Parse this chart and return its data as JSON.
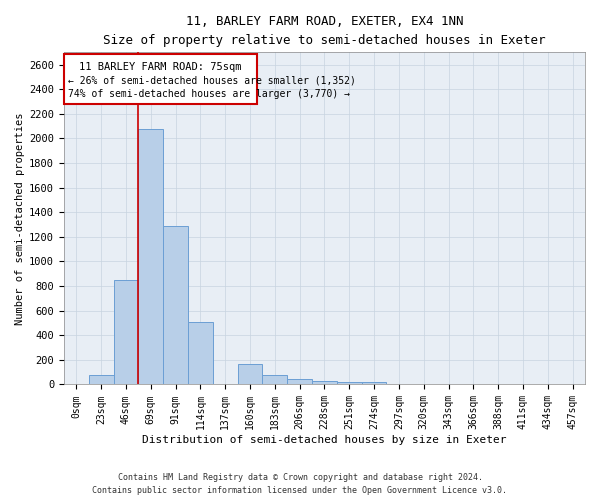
{
  "title": "11, BARLEY FARM ROAD, EXETER, EX4 1NN",
  "subtitle": "Size of property relative to semi-detached houses in Exeter",
  "xlabel": "Distribution of semi-detached houses by size in Exeter",
  "ylabel": "Number of semi-detached properties",
  "bar_labels": [
    "0sqm",
    "23sqm",
    "46sqm",
    "69sqm",
    "91sqm",
    "114sqm",
    "137sqm",
    "160sqm",
    "183sqm",
    "206sqm",
    "228sqm",
    "251sqm",
    "274sqm",
    "297sqm",
    "320sqm",
    "343sqm",
    "366sqm",
    "388sqm",
    "411sqm",
    "434sqm",
    "457sqm"
  ],
  "bar_heights": [
    0,
    80,
    850,
    2080,
    1290,
    510,
    0,
    165,
    80,
    45,
    30,
    20,
    20,
    0,
    0,
    0,
    0,
    0,
    0,
    0,
    0
  ],
  "bar_color": "#b8cfe8",
  "bar_edge_color": "#6b9fd4",
  "grid_color": "#c8d4e0",
  "background_color": "#e8eef5",
  "red_line_x": 2.5,
  "annotation_title": "11 BARLEY FARM ROAD: 75sqm",
  "annotation_line1": "← 26% of semi-detached houses are smaller (1,352)",
  "annotation_line2": "74% of semi-detached houses are larger (3,770) →",
  "annotation_box_color": "#ffffff",
  "annotation_box_edge": "#cc0000",
  "footer1": "Contains HM Land Registry data © Crown copyright and database right 2024.",
  "footer2": "Contains public sector information licensed under the Open Government Licence v3.0.",
  "ylim": [
    0,
    2700
  ],
  "yticks": [
    0,
    200,
    400,
    600,
    800,
    1000,
    1200,
    1400,
    1600,
    1800,
    2000,
    2200,
    2400,
    2600
  ]
}
